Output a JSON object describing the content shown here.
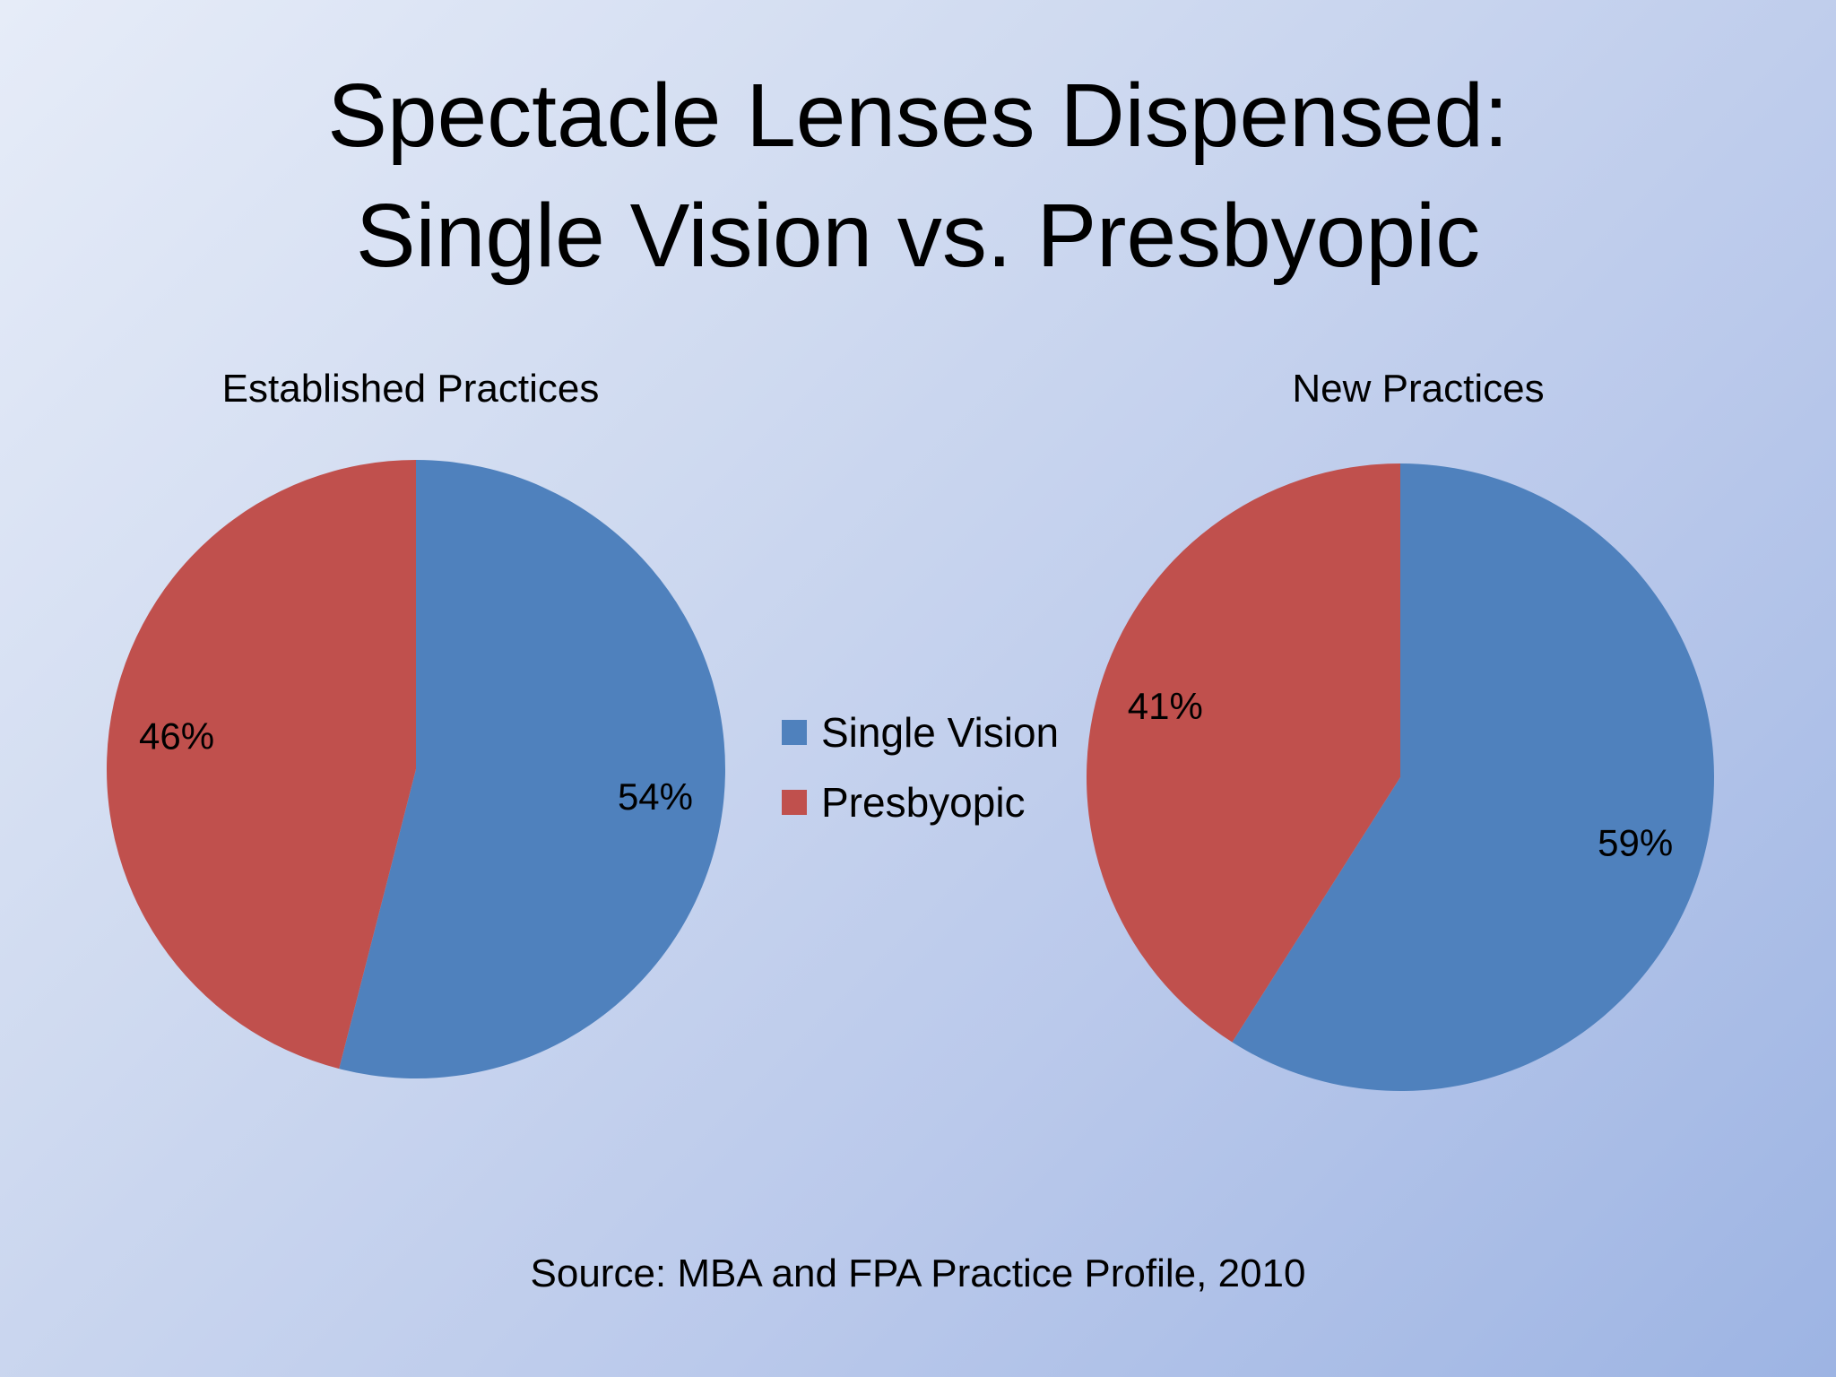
{
  "slide": {
    "title_line1": "Spectacle Lenses Dispensed:",
    "title_line2": "Single Vision vs. Presbyopic",
    "source": "Source: MBA and FPA Practice Profile, 2010"
  },
  "legend": [
    {
      "label": "Single Vision",
      "color": "#4f81bd"
    },
    {
      "label": "Presbyopic",
      "color": "#c0504d"
    }
  ],
  "chart_data": [
    {
      "type": "pie",
      "title": "Established Practices",
      "categories": [
        "Single Vision",
        "Presbyopic"
      ],
      "values": [
        54,
        46
      ],
      "labels": [
        "54%",
        "46%"
      ],
      "colors": [
        "#4f81bd",
        "#c0504d"
      ],
      "legend": "center"
    },
    {
      "type": "pie",
      "title": "New Practices",
      "categories": [
        "Single Vision",
        "Presbyopic"
      ],
      "values": [
        59,
        41
      ],
      "labels": [
        "59%",
        "41%"
      ],
      "colors": [
        "#4f81bd",
        "#c0504d"
      ],
      "legend": "center"
    }
  ]
}
